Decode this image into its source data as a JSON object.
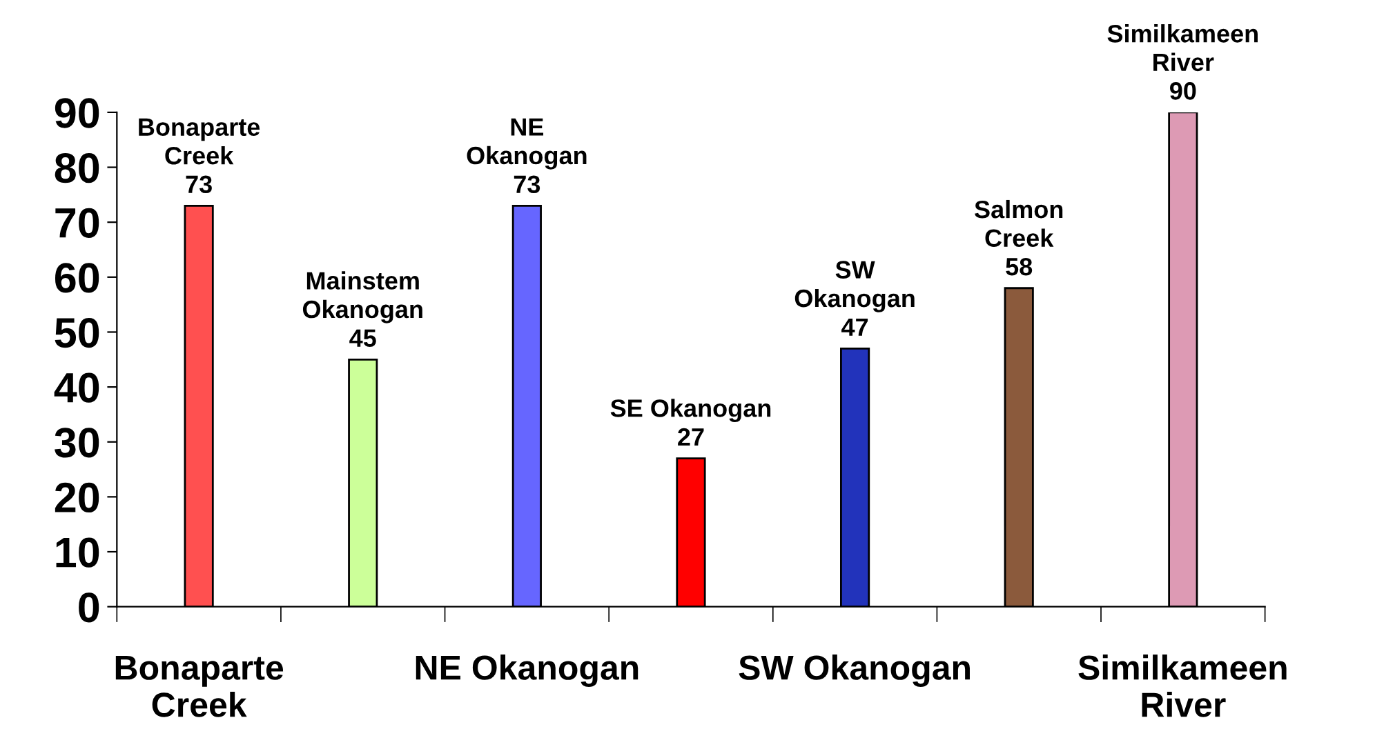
{
  "chart_data": {
    "type": "bar",
    "categories": [
      "Bonaparte\nCreek",
      null,
      "NE Okanogan",
      null,
      "SW Okanogan",
      null,
      "Similkameen\nRiver"
    ],
    "values": [
      73,
      45,
      73,
      27,
      47,
      58,
      90
    ],
    "colors": [
      "#ff5050",
      "#ccff99",
      "#6666ff",
      "#ff0000",
      "#2233bb",
      "#8b5a3c",
      "#dd9ab4"
    ],
    "value_labels": [
      "Bonaparte\nCreek\n73",
      "Mainstem\nOkanogan\n45",
      "NE\nOkanogan\n73",
      "SE Okanogan\n27",
      "SW\nOkanogan\n47",
      "Salmon\nCreek\n58",
      "Similkameen\nRiver\n90"
    ],
    "ylim": [
      0,
      90
    ],
    "yticks": [
      0,
      10,
      20,
      30,
      40,
      50,
      60,
      70,
      80,
      90
    ],
    "grid": false,
    "legend": false
  }
}
